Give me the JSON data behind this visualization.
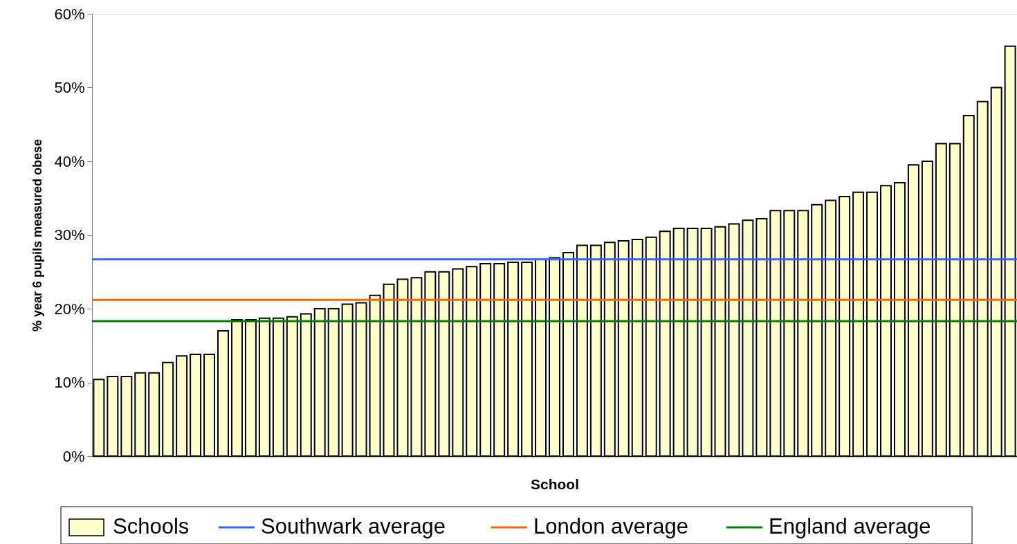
{
  "chart_data": {
    "type": "bar",
    "xlabel": "School",
    "ylabel": "% year 6 pupils measured obese",
    "categories": [
      null,
      null,
      null,
      null,
      null,
      null,
      null,
      null,
      null,
      null,
      null,
      null,
      null,
      null,
      null,
      null,
      null,
      null,
      null,
      null,
      null,
      null,
      null,
      null,
      null,
      null,
      null,
      null,
      null,
      null,
      null,
      null,
      null,
      null,
      null,
      null,
      null,
      null,
      null,
      null,
      null,
      null,
      null,
      null,
      null,
      null,
      null,
      null,
      null,
      null,
      null,
      null,
      null,
      null,
      null,
      null,
      null,
      null,
      null,
      null,
      null,
      null,
      null,
      null,
      null,
      null,
      null
    ],
    "series": [
      {
        "name": "Schools",
        "color": "#ffffcc",
        "values": [
          10.4,
          10.8,
          10.8,
          11.3,
          11.3,
          12.7,
          13.6,
          13.8,
          13.8,
          17.0,
          18.5,
          18.5,
          18.7,
          18.7,
          18.9,
          19.3,
          20.0,
          20.0,
          20.6,
          20.8,
          21.8,
          23.3,
          24.0,
          24.2,
          25.0,
          25.0,
          25.4,
          25.7,
          26.1,
          26.1,
          26.3,
          26.3,
          26.7,
          26.9,
          27.6,
          28.6,
          28.6,
          29.0,
          29.2,
          29.4,
          29.7,
          30.5,
          30.9,
          30.9,
          30.9,
          31.1,
          31.5,
          32.0,
          32.2,
          33.3,
          33.3,
          33.3,
          34.1,
          34.7,
          35.2,
          35.8,
          35.8,
          36.7,
          37.1,
          39.5,
          40.0,
          42.4,
          42.4,
          46.2,
          48.1,
          50.0,
          55.6
        ]
      }
    ],
    "ref_lines": [
      {
        "axis": "y",
        "value": 26.7,
        "label": "Southwark average",
        "color": "#3366ff"
      },
      {
        "axis": "y",
        "value": 21.2,
        "label": "London average",
        "color": "#ff6600"
      },
      {
        "axis": "y",
        "value": 18.3,
        "label": "England average",
        "color": "#008000"
      }
    ],
    "ylim": [
      0,
      60
    ],
    "yticks": [
      {
        "value": 0,
        "label": "0%"
      },
      {
        "value": 10,
        "label": "10%"
      },
      {
        "value": 20,
        "label": "20%"
      },
      {
        "value": 30,
        "label": "30%"
      },
      {
        "value": 40,
        "label": "40%"
      },
      {
        "value": 50,
        "label": "50%"
      },
      {
        "value": 60,
        "label": "60%"
      }
    ],
    "grid": false,
    "legend": "bottom"
  }
}
